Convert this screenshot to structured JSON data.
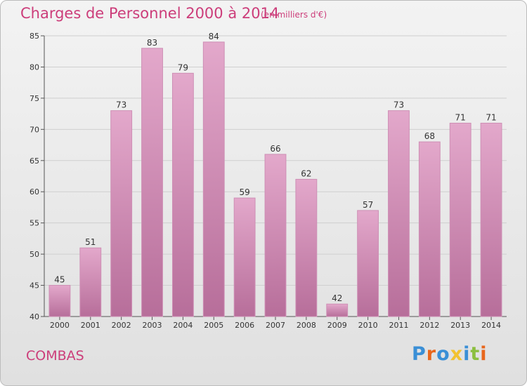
{
  "header": {
    "title": "Charges de Personnel 2000 à 2014",
    "subtitle": "(en milliers d'€)"
  },
  "footer": {
    "commune": "COMBAS",
    "logo": "Proxiti",
    "logo_colors": [
      "#3a8fd6",
      "#e8661c",
      "#3a8fd6",
      "#f2c230",
      "#3a8fd6",
      "#8cbf3f",
      "#e8661c"
    ]
  },
  "chart_data": {
    "type": "bar",
    "categories": [
      "2000",
      "2001",
      "2002",
      "2003",
      "2004",
      "2005",
      "2006",
      "2007",
      "2008",
      "2009",
      "2010",
      "2011",
      "2012",
      "2013",
      "2014"
    ],
    "values": [
      45,
      51,
      73,
      83,
      79,
      84,
      59,
      66,
      62,
      42,
      57,
      73,
      68,
      71,
      71
    ],
    "title": "Charges de Personnel 2000 à 2014",
    "subtitle": "(en milliers d'€)",
    "xlabel": "",
    "ylabel": "",
    "ylim": [
      40,
      85
    ],
    "yticks": [
      40,
      45,
      50,
      55,
      60,
      65,
      70,
      75,
      80,
      85
    ],
    "grid": true,
    "bar_color_top": "#e3a8cb",
    "bar_color_bottom": "#b76e9a",
    "accent_color": "#cc3d7a"
  }
}
